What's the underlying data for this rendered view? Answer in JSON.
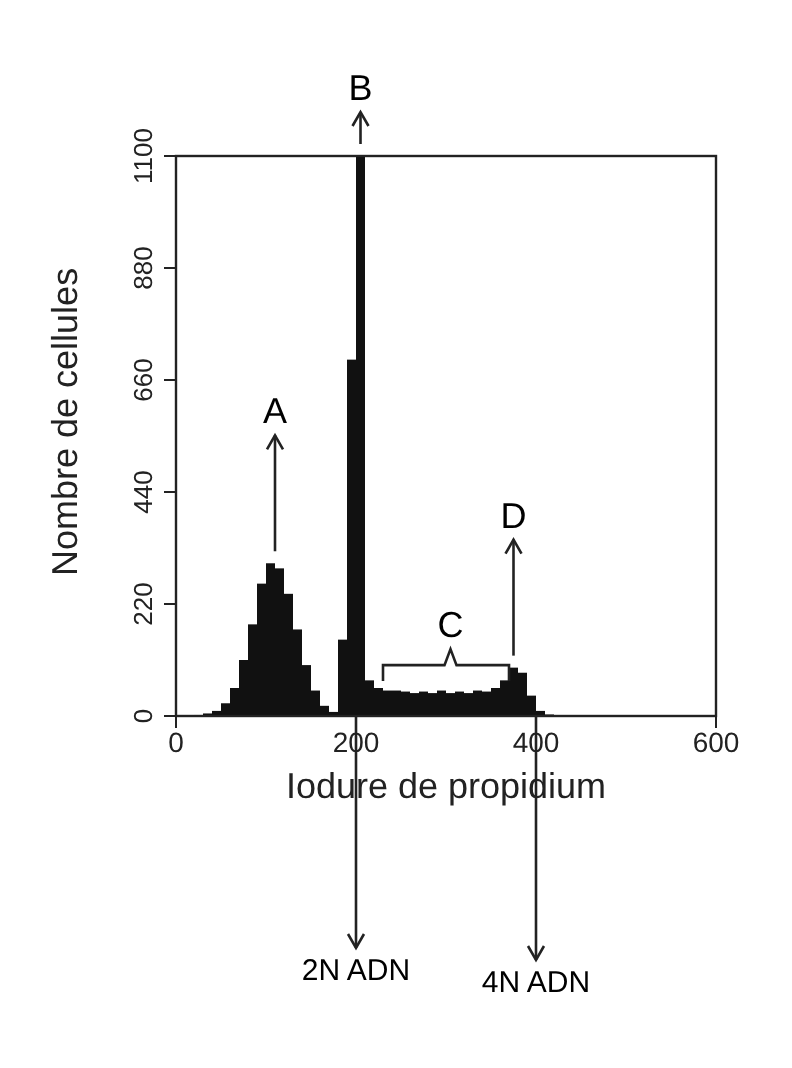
{
  "chart_data": {
    "type": "histogram",
    "xlabel": "Iodure de propidium",
    "ylabel": "Nombre de cellules",
    "bins": [
      0,
      10,
      20,
      30,
      40,
      50,
      60,
      70,
      80,
      90,
      100,
      110,
      120,
      130,
      140,
      150,
      160,
      170,
      180,
      190,
      200,
      210,
      220,
      230,
      240,
      250,
      260,
      270,
      280,
      290,
      300,
      310,
      320,
      330,
      340,
      350,
      360,
      370,
      380,
      390,
      400,
      410,
      420,
      430,
      440,
      450,
      460,
      470,
      480,
      490,
      500,
      510,
      520,
      530,
      540,
      550,
      560,
      570,
      580,
      590,
      600
    ],
    "values": [
      0,
      0,
      2,
      5,
      10,
      25,
      55,
      110,
      180,
      260,
      300,
      290,
      240,
      170,
      100,
      50,
      20,
      8,
      150,
      700,
      1100,
      70,
      55,
      50,
      50,
      48,
      45,
      48,
      45,
      50,
      45,
      48,
      45,
      50,
      48,
      55,
      70,
      95,
      85,
      40,
      10,
      3,
      0,
      0,
      0,
      0,
      0,
      0,
      0,
      0,
      0,
      0,
      0,
      0,
      0,
      0,
      0,
      0,
      0,
      0
    ],
    "color": "#111111",
    "xlim": [
      0,
      600
    ],
    "xticks": [
      0,
      200,
      400,
      600
    ],
    "ylim": [
      0,
      1100
    ],
    "yticks": [
      0,
      220,
      440,
      660,
      880,
      1100
    ],
    "grid": false,
    "legend": false,
    "annotations": [
      {
        "text": "A",
        "x": 110,
        "y": 300
      },
      {
        "text": "B",
        "x": 205,
        "y": 1100
      },
      {
        "text": "C",
        "x": 305,
        "y": 45
      },
      {
        "text": "D",
        "x": 375,
        "y": 95
      }
    ],
    "ref_lines": [
      {
        "axis": "x",
        "value": 200,
        "label": "2N ADN"
      },
      {
        "axis": "x",
        "value": 400,
        "label": "4N ADN"
      }
    ]
  }
}
